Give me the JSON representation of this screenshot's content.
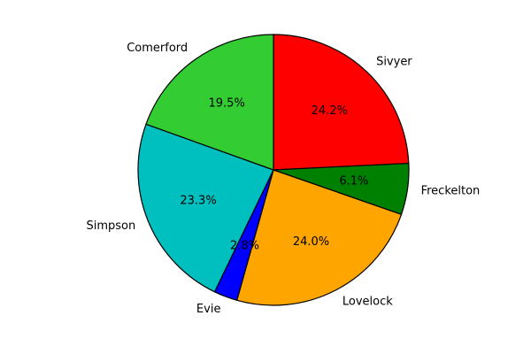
{
  "chart_data": {
    "type": "pie",
    "title": "",
    "start_angle_deg": 90,
    "direction": "clockwise",
    "slices": [
      {
        "label": "Sivyer",
        "value": 24.2,
        "pct_label": "24.2%",
        "color": "#ff0000"
      },
      {
        "label": "Freckelton",
        "value": 6.1,
        "pct_label": "6.1%",
        "color": "#008000"
      },
      {
        "label": "Lovelock",
        "value": 24.0,
        "pct_label": "24.0%",
        "color": "#ffa500"
      },
      {
        "label": "Evie",
        "value": 2.8,
        "pct_label": "2.8%",
        "color": "#0000ff"
      },
      {
        "label": "Simpson",
        "value": 23.3,
        "pct_label": "23.3%",
        "color": "#00bfbf"
      },
      {
        "label": "Comerford",
        "value": 19.5,
        "pct_label": "19.5%",
        "color": "#33cc33"
      }
    ]
  }
}
